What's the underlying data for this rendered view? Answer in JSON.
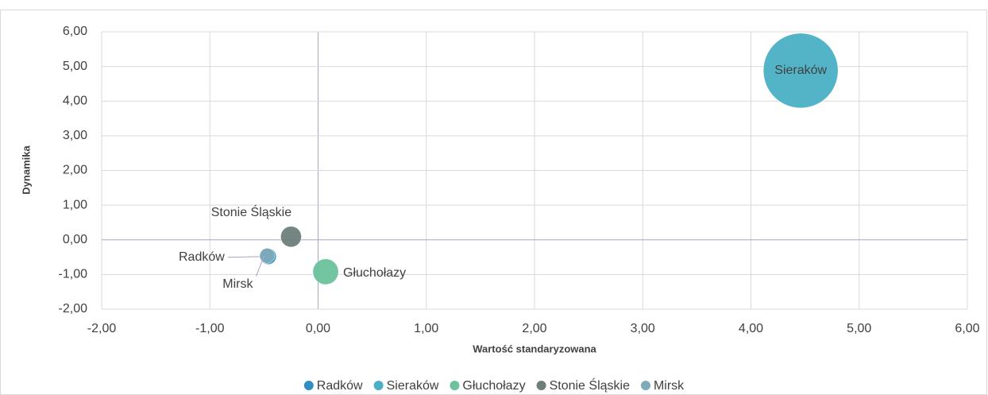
{
  "chart_data": {
    "type": "bubble",
    "x_label": "Wartość standaryzowana",
    "y_label": "Dynamika",
    "xlim": [
      -2,
      6
    ],
    "ylim": [
      -2,
      6
    ],
    "xticks": [
      {
        "value": -2,
        "label": "-2,00"
      },
      {
        "value": -1,
        "label": "-1,00"
      },
      {
        "value": 0,
        "label": "0,00"
      },
      {
        "value": 1,
        "label": "1,00"
      },
      {
        "value": 2,
        "label": "2,00"
      },
      {
        "value": 3,
        "label": "3,00"
      },
      {
        "value": 4,
        "label": "4,00"
      },
      {
        "value": 5,
        "label": "5,00"
      },
      {
        "value": 6,
        "label": "6,00"
      }
    ],
    "yticks": [
      {
        "value": -2,
        "label": "-2,00"
      },
      {
        "value": -1,
        "label": "-1,00"
      },
      {
        "value": 0,
        "label": "0,00"
      },
      {
        "value": 1,
        "label": "1,00"
      },
      {
        "value": 2,
        "label": "2,00"
      },
      {
        "value": 3,
        "label": "3,00"
      },
      {
        "value": 4,
        "label": "4,00"
      },
      {
        "value": 5,
        "label": "5,00"
      },
      {
        "value": 6,
        "label": "6,00"
      }
    ],
    "grid": true,
    "legend": "bottom",
    "series": [
      {
        "name": "Radków",
        "color": "#2f8fc2",
        "x": [
          -0.46
        ],
        "values": [
          -0.48
        ],
        "sizes": [
          1.0
        ]
      },
      {
        "name": "Sieraków",
        "color": "#4bb0c4",
        "x": [
          4.46
        ],
        "values": [
          4.88
        ],
        "sizes": [
          22
        ]
      },
      {
        "name": "Głuchołazy",
        "color": "#6cc29c",
        "x": [
          0.07
        ],
        "values": [
          -0.92
        ],
        "sizes": [
          2.6
        ]
      },
      {
        "name": "Stonie Śląskie",
        "color": "#6e7e7b",
        "x": [
          -0.25
        ],
        "values": [
          0.09
        ],
        "sizes": [
          1.7
        ]
      },
      {
        "name": "Mirsk",
        "color": "#7eaabb",
        "x": [
          -0.47
        ],
        "values": [
          -0.46
        ],
        "sizes": [
          0.9
        ]
      }
    ]
  }
}
